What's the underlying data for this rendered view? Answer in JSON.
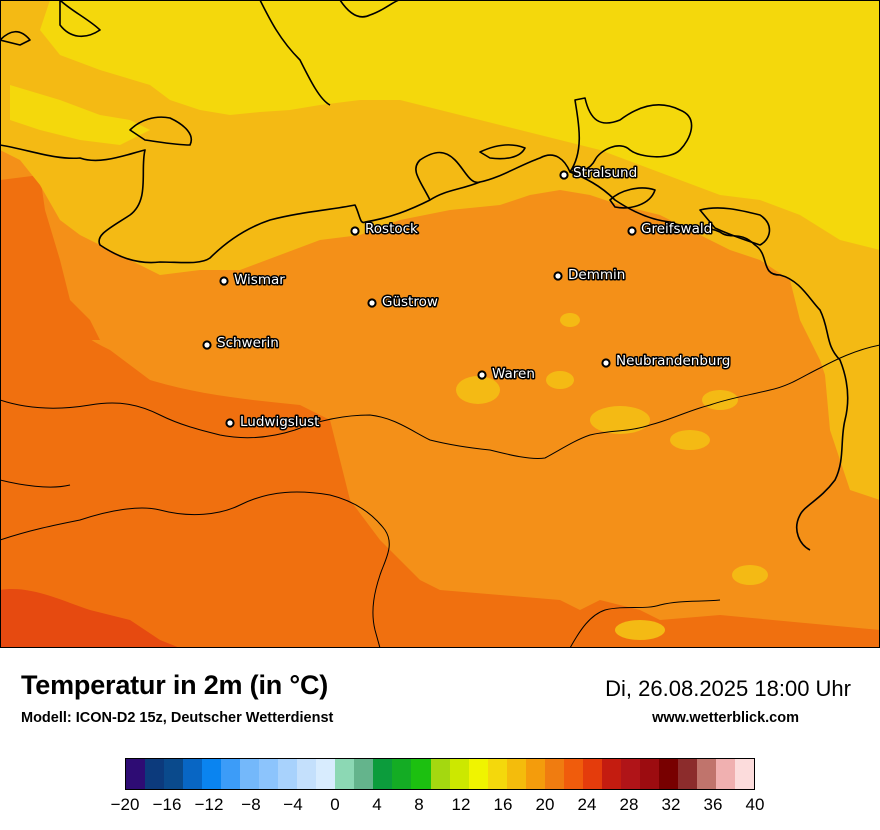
{
  "map": {
    "cities": [
      {
        "name": "Stralsund"
      },
      {
        "name": "Rostock"
      },
      {
        "name": "Greifswald"
      },
      {
        "name": "Wismar"
      },
      {
        "name": "Demmin"
      },
      {
        "name": "Güstrow"
      },
      {
        "name": "Schwerin"
      },
      {
        "name": "Neubrandenburg"
      },
      {
        "name": "Waren"
      },
      {
        "name": "Ludwigslust"
      }
    ]
  },
  "footer": {
    "title": "Temperatur in 2m (in °C)",
    "subtitle": "Modell: ICON-D2 15z, Deutscher Wetterdienst",
    "datetime": "Di, 26.08.2025 18:00 Uhr",
    "website": "www.wetterblick.com"
  },
  "colorbar": {
    "colors": [
      "#2e0c74",
      "#0c3a7c",
      "#0a4a8c",
      "#0866c4",
      "#0a84f0",
      "#3c9cf8",
      "#74b8fa",
      "#8cc4fc",
      "#a8d2fc",
      "#c4e0fc",
      "#d8ecfe",
      "#8cd8b4",
      "#64b48c",
      "#0c9c3c",
      "#14ac24",
      "#1cc010",
      "#a4d810",
      "#cce800",
      "#f0f400",
      "#f4d80c",
      "#f4bc0c",
      "#f49c0c",
      "#f07c10",
      "#f05c0c",
      "#e43c0c",
      "#c41c10",
      "#b01418",
      "#9c0c10",
      "#780000",
      "#8c2c2c",
      "#c0746c",
      "#f0b0b0",
      "#fcdcdc"
    ],
    "ticks": [
      "−20",
      "−16",
      "−12",
      "−8",
      "−4",
      "0",
      "4",
      "8",
      "12",
      "16",
      "20",
      "24",
      "28",
      "32",
      "36",
      "40"
    ],
    "min": -20,
    "max": 40
  }
}
